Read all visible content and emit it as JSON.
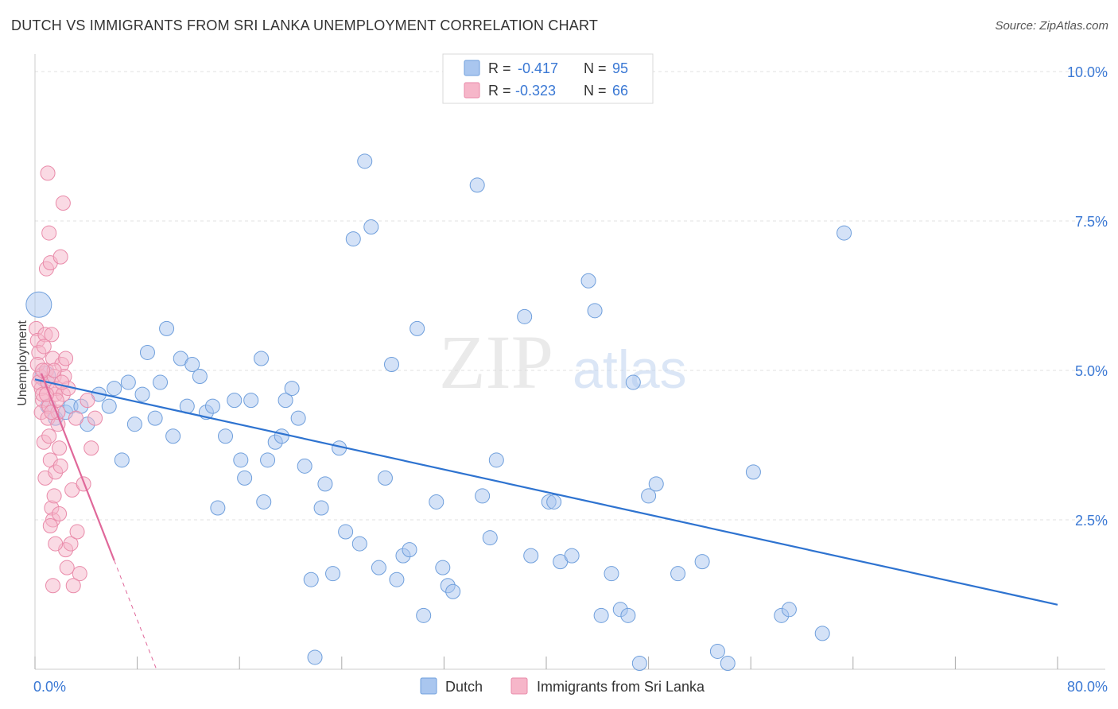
{
  "title": "DUTCH VS IMMIGRANTS FROM SRI LANKA UNEMPLOYMENT CORRELATION CHART",
  "source": "Source: ZipAtlas.com",
  "watermark": {
    "zip": "ZIP",
    "atlas": "atlas"
  },
  "legend_top": [
    {
      "r_label": "R =",
      "r_value": "-0.417",
      "n_label": "N =",
      "n_value": "95"
    },
    {
      "r_label": "R =",
      "r_value": "-0.323",
      "n_label": "N =",
      "n_value": "66"
    }
  ],
  "legend_bottom": [
    "Dutch",
    "Immigrants from Sri Lanka"
  ],
  "colors": {
    "dutch_fill": "#a9c6ef",
    "dutch_stroke": "#6f9fdc",
    "dutch_line": "#2e73d0",
    "sri_fill": "#f6b6c9",
    "sri_stroke": "#e98aa9",
    "sri_line": "#e0689a",
    "value_text": "#3a78d4",
    "grid": "#e2e2e2"
  },
  "chart_data": {
    "type": "scatter",
    "title": "DUTCH VS IMMIGRANTS FROM SRI LANKA UNEMPLOYMENT CORRELATION CHART",
    "xlabel": "",
    "ylabel": "Unemployment",
    "xlim": [
      0,
      80
    ],
    "ylim": [
      0,
      10.2
    ],
    "x_tick_labels": [
      "0.0%",
      "80.0%"
    ],
    "y_ticks": [
      2.5,
      5.0,
      7.5,
      10.0
    ],
    "y_tick_labels": [
      "2.5%",
      "5.0%",
      "7.5%",
      "10.0%"
    ],
    "grid": true,
    "legend_position": "top-center",
    "series": [
      {
        "name": "Dutch",
        "points": [
          [
            0.3,
            6.1
          ],
          [
            0.8,
            4.9
          ],
          [
            1.0,
            4.4
          ],
          [
            1.6,
            4.2
          ],
          [
            2.4,
            4.3
          ],
          [
            2.8,
            4.4
          ],
          [
            3.6,
            4.4
          ],
          [
            4.1,
            4.1
          ],
          [
            5.0,
            4.6
          ],
          [
            5.8,
            4.4
          ],
          [
            6.2,
            4.7
          ],
          [
            6.8,
            3.5
          ],
          [
            7.3,
            4.8
          ],
          [
            7.8,
            4.1
          ],
          [
            8.4,
            4.6
          ],
          [
            8.8,
            5.3
          ],
          [
            9.4,
            4.2
          ],
          [
            9.8,
            4.8
          ],
          [
            10.3,
            5.7
          ],
          [
            10.8,
            3.9
          ],
          [
            11.4,
            5.2
          ],
          [
            11.9,
            4.4
          ],
          [
            12.3,
            5.1
          ],
          [
            12.9,
            4.9
          ],
          [
            13.4,
            4.3
          ],
          [
            13.9,
            4.4
          ],
          [
            14.3,
            2.7
          ],
          [
            14.9,
            3.9
          ],
          [
            15.6,
            4.5
          ],
          [
            16.1,
            3.5
          ],
          [
            16.4,
            3.2
          ],
          [
            16.9,
            4.5
          ],
          [
            17.7,
            5.2
          ],
          [
            17.9,
            2.8
          ],
          [
            18.2,
            3.5
          ],
          [
            18.8,
            3.8
          ],
          [
            19.3,
            3.9
          ],
          [
            19.6,
            4.5
          ],
          [
            20.1,
            4.7
          ],
          [
            20.6,
            4.2
          ],
          [
            21.1,
            3.4
          ],
          [
            21.6,
            1.5
          ],
          [
            21.9,
            0.2
          ],
          [
            22.4,
            2.7
          ],
          [
            22.7,
            3.1
          ],
          [
            23.3,
            1.6
          ],
          [
            23.8,
            3.7
          ],
          [
            24.3,
            2.3
          ],
          [
            24.9,
            7.2
          ],
          [
            25.4,
            2.1
          ],
          [
            25.8,
            8.5
          ],
          [
            26.3,
            7.4
          ],
          [
            26.9,
            1.7
          ],
          [
            27.4,
            3.2
          ],
          [
            27.9,
            5.1
          ],
          [
            28.3,
            1.5
          ],
          [
            28.8,
            1.9
          ],
          [
            29.3,
            2.0
          ],
          [
            29.9,
            5.7
          ],
          [
            30.4,
            0.9
          ],
          [
            31.4,
            2.8
          ],
          [
            31.9,
            1.7
          ],
          [
            32.3,
            1.4
          ],
          [
            32.7,
            1.3
          ],
          [
            34.6,
            8.1
          ],
          [
            35.0,
            2.9
          ],
          [
            35.6,
            2.2
          ],
          [
            36.1,
            3.5
          ],
          [
            38.3,
            5.9
          ],
          [
            38.8,
            1.9
          ],
          [
            40.2,
            2.8
          ],
          [
            40.6,
            2.8
          ],
          [
            41.1,
            1.8
          ],
          [
            42.0,
            1.9
          ],
          [
            43.3,
            6.5
          ],
          [
            43.8,
            6.0
          ],
          [
            44.3,
            0.9
          ],
          [
            45.1,
            1.6
          ],
          [
            45.8,
            1.0
          ],
          [
            46.4,
            0.9
          ],
          [
            46.8,
            4.8
          ],
          [
            47.3,
            0.1
          ],
          [
            48.0,
            2.9
          ],
          [
            48.6,
            3.1
          ],
          [
            50.3,
            1.6
          ],
          [
            52.2,
            1.8
          ],
          [
            53.4,
            0.3
          ],
          [
            54.2,
            0.1
          ],
          [
            56.2,
            3.3
          ],
          [
            58.4,
            0.9
          ],
          [
            59.0,
            1.0
          ],
          [
            61.6,
            0.6
          ],
          [
            63.3,
            7.3
          ]
        ],
        "trendline": [
          [
            0,
            4.85
          ],
          [
            80,
            1.08
          ]
        ]
      },
      {
        "name": "Immigrants from Sri Lanka",
        "points": [
          [
            0.1,
            5.7
          ],
          [
            0.2,
            5.5
          ],
          [
            0.3,
            5.3
          ],
          [
            0.4,
            4.9
          ],
          [
            0.5,
            4.7
          ],
          [
            0.6,
            4.5
          ],
          [
            0.7,
            3.8
          ],
          [
            0.8,
            3.2
          ],
          [
            0.2,
            5.1
          ],
          [
            0.3,
            4.8
          ],
          [
            0.5,
            4.3
          ],
          [
            0.6,
            4.6
          ],
          [
            0.8,
            5.6
          ],
          [
            0.9,
            5.0
          ],
          [
            1.0,
            4.8
          ],
          [
            1.1,
            4.4
          ],
          [
            0.9,
            6.7
          ],
          [
            1.0,
            8.3
          ],
          [
            1.1,
            7.3
          ],
          [
            1.2,
            6.8
          ],
          [
            1.3,
            5.6
          ],
          [
            1.4,
            5.2
          ],
          [
            1.5,
            4.9
          ],
          [
            1.6,
            4.6
          ],
          [
            1.0,
            4.2
          ],
          [
            1.1,
            3.9
          ],
          [
            1.2,
            3.5
          ],
          [
            1.3,
            2.7
          ],
          [
            1.4,
            2.5
          ],
          [
            1.5,
            2.9
          ],
          [
            1.6,
            3.3
          ],
          [
            1.7,
            4.7
          ],
          [
            1.8,
            4.1
          ],
          [
            1.9,
            3.7
          ],
          [
            2.0,
            3.4
          ],
          [
            2.1,
            5.1
          ],
          [
            2.2,
            4.6
          ],
          [
            2.3,
            4.9
          ],
          [
            2.4,
            2.0
          ],
          [
            1.6,
            2.1
          ],
          [
            1.4,
            1.4
          ],
          [
            2.0,
            6.9
          ],
          [
            2.2,
            7.8
          ],
          [
            1.5,
            5.0
          ],
          [
            0.7,
            5.4
          ],
          [
            1.8,
            4.3
          ],
          [
            2.6,
            4.7
          ],
          [
            2.9,
            3.0
          ],
          [
            3.2,
            4.2
          ],
          [
            3.5,
            1.6
          ],
          [
            3.8,
            3.1
          ],
          [
            4.1,
            4.5
          ],
          [
            4.4,
            3.7
          ],
          [
            4.7,
            4.2
          ],
          [
            1.2,
            2.4
          ],
          [
            1.9,
            2.6
          ],
          [
            2.5,
            1.7
          ],
          [
            2.8,
            2.1
          ],
          [
            3.0,
            1.4
          ],
          [
            3.3,
            2.3
          ],
          [
            1.7,
            4.5
          ],
          [
            2.4,
            5.2
          ],
          [
            0.9,
            4.6
          ],
          [
            1.3,
            4.3
          ],
          [
            2.1,
            4.8
          ],
          [
            0.6,
            5.0
          ]
        ],
        "trendline": [
          [
            0.5,
            4.95
          ],
          [
            6.2,
            1.82
          ]
        ],
        "trendline_extension": [
          [
            6.2,
            1.82
          ],
          [
            9.5,
            0.0
          ]
        ]
      }
    ]
  }
}
